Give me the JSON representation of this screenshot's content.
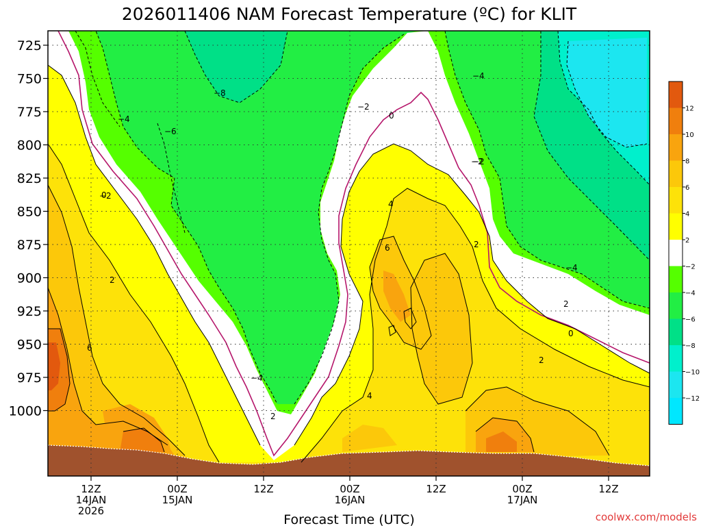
{
  "chart_data": {
    "type": "heatmap",
    "title": "2026011406 NAM Forecast Temperature (ºC) for KLIT",
    "xlabel": "Forecast Time (UTC)",
    "ylabel": "",
    "credit": "coolwx.com/models",
    "y_ticks": [
      "725",
      "750",
      "775",
      "800",
      "825",
      "850",
      "875",
      "900",
      "925",
      "950",
      "975",
      "1000"
    ],
    "x_ticks": [
      {
        "line1": "12Z",
        "line2": "14JAN",
        "line3": "2026"
      },
      {
        "line1": "00Z",
        "line2": "15JAN",
        "line3": ""
      },
      {
        "line1": "12Z",
        "line2": "",
        "line3": ""
      },
      {
        "line1": "00Z",
        "line2": "16JAN",
        "line3": ""
      },
      {
        "line1": "12Z",
        "line2": "",
        "line3": ""
      },
      {
        "line1": "00Z",
        "line2": "17JAN",
        "line3": ""
      },
      {
        "line1": "12Z",
        "line2": "",
        "line3": ""
      }
    ],
    "colorbar": {
      "levels": [
        "12",
        "10",
        "8",
        "6",
        "4",
        "2",
        "−2",
        "−4",
        "−6",
        "−8",
        "−10",
        "−12"
      ],
      "colors": [
        "#e2590e",
        "#f07f0d",
        "#f9a40e",
        "#fcc80a",
        "#fde209",
        "#ffff00",
        "#ffffff",
        "#55ff00",
        "#22ee44",
        "#00e087",
        "#00f0cc",
        "#1ce6f0",
        "#00e7ff"
      ]
    },
    "contour_labels": [
      "−4",
      "−6",
      "−8",
      "−4",
      "−2",
      "0",
      "−2",
      "−2",
      "−4",
      "4",
      "6",
      "2",
      "2",
      "0",
      "2",
      "−4",
      "2",
      "6",
      "0",
      "2",
      "4",
      "−2"
    ]
  }
}
